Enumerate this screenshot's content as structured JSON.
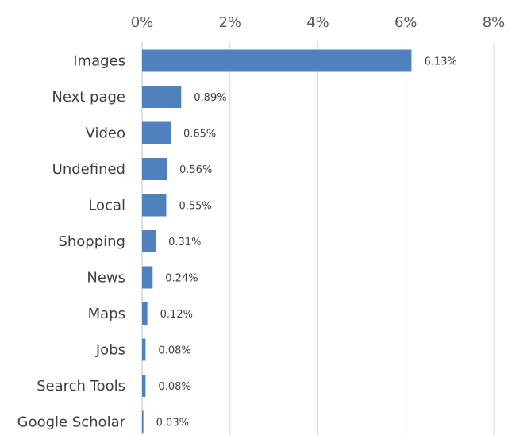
{
  "chart_data": {
    "type": "bar",
    "orientation": "horizontal",
    "categories": [
      "Images",
      "Next page",
      "Video",
      "Undefined",
      "Local",
      "Shopping",
      "News",
      "Maps",
      "Jobs",
      "Search Tools",
      "Google Scholar"
    ],
    "values": [
      6.13,
      0.89,
      0.65,
      0.56,
      0.55,
      0.31,
      0.24,
      0.12,
      0.08,
      0.08,
      0.03
    ],
    "data_labels": [
      "6.13%",
      "0.89%",
      "0.65%",
      "0.56%",
      "0.55%",
      "0.31%",
      "0.24%",
      "0.12%",
      "0.08%",
      "0.08%",
      "0.03%"
    ],
    "x_ticks": [
      0,
      2,
      4,
      6,
      8
    ],
    "x_tick_labels": [
      "0%",
      "2%",
      "4%",
      "6%",
      "8%"
    ],
    "xlim": [
      0,
      8
    ],
    "x_axis_position": "top",
    "grid": true,
    "legend": "none",
    "bar_color": "#4f81bd",
    "grid_color": "#d9d9d9"
  }
}
